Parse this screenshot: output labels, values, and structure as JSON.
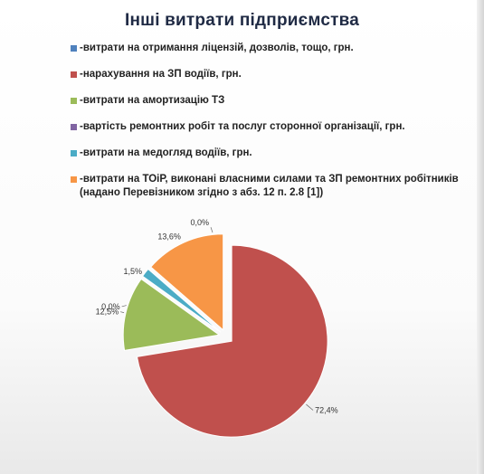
{
  "chart_data": {
    "type": "pie",
    "title": "Інші витрати підприємства",
    "legend_position": "top",
    "series": [
      {
        "name": "-витрати на отримання ліцензій, дозволів, тощо, грн.",
        "value": 0.0,
        "label": "0,0%",
        "color": "#4f81bd"
      },
      {
        "name": "-нарахування на ЗП водіїв, грн.",
        "value": 72.4,
        "label": "72,4%",
        "color": "#c0504d"
      },
      {
        "name": "-витрати на амортизацію ТЗ",
        "value": 12.5,
        "label": "12,5%",
        "color": "#9bbb59"
      },
      {
        "name": "-вартість ремонтних робіт та послуг сторонної організації, грн.",
        "value": 0.0,
        "label": "0,0%",
        "color": "#8064a2"
      },
      {
        "name": "-витрати на медогляд водіїв, грн.",
        "value": 1.5,
        "label": "1,5%",
        "color": "#4bacc6"
      },
      {
        "name": "-витрати на ТОіР, виконані власними силами та ЗП ремонтних робітників (надано Перевізником згідно з абз. 12 п. 2.8 [1])",
        "value": 13.6,
        "label": "13,6%",
        "color": "#f79646"
      }
    ]
  }
}
